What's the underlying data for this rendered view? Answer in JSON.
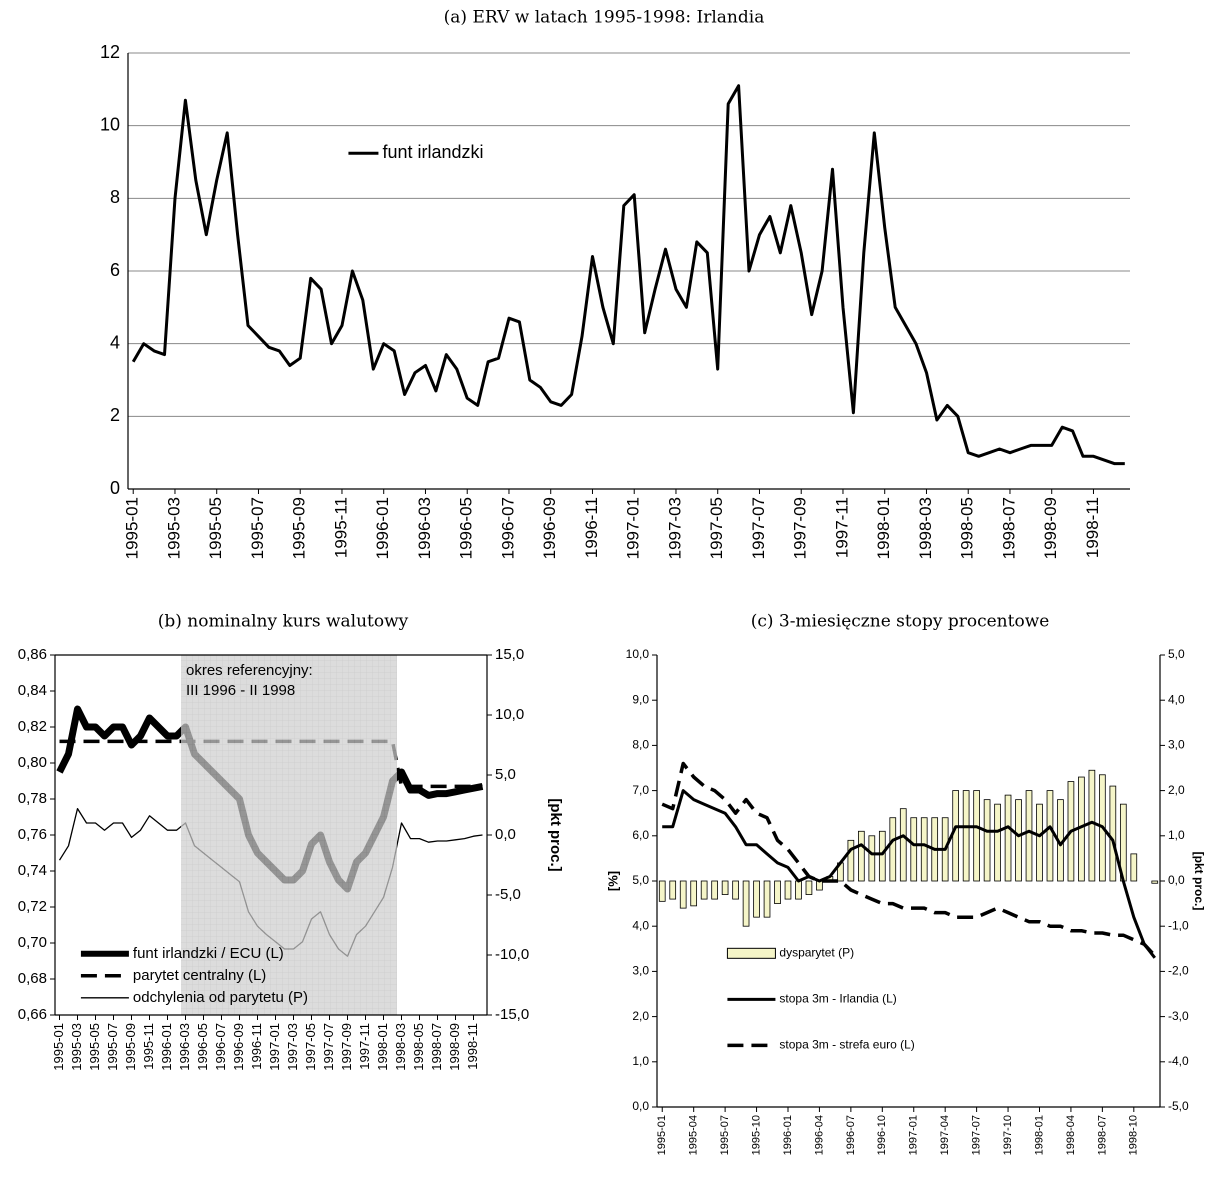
{
  "chart_data": [
    {
      "type": "line",
      "title": "(a) ERV w latach 1995-1998: Irlandia",
      "grid": true,
      "legend": "top",
      "categories": [
        "1995-01",
        null,
        null,
        null,
        "1995-03",
        null,
        null,
        null,
        "1995-05",
        null,
        null,
        null,
        "1995-07",
        null,
        null,
        null,
        "1995-09",
        null,
        null,
        null,
        "1995-11",
        null,
        null,
        null,
        "1996-01",
        null,
        null,
        null,
        "1996-03",
        null,
        null,
        null,
        "1996-05",
        null,
        null,
        null,
        "1996-07",
        null,
        null,
        null,
        "1996-09",
        null,
        null,
        null,
        "1996-11",
        null,
        null,
        null,
        "1997-01",
        null,
        null,
        null,
        "1997-03",
        null,
        null,
        null,
        "1997-05",
        null,
        null,
        null,
        "1997-07",
        null,
        null,
        null,
        "1997-09",
        null,
        null,
        null,
        "1997-11",
        null,
        null,
        null,
        "1998-01",
        null,
        null,
        null,
        "1998-03",
        null,
        null,
        null,
        "1998-05",
        null,
        null,
        null,
        "1998-07",
        null,
        null,
        null,
        "1998-09",
        null,
        null,
        null,
        "1998-11",
        null,
        null,
        null
      ],
      "ylim": [
        0,
        12
      ],
      "yticks": [
        0,
        2,
        4,
        6,
        8,
        10,
        12
      ],
      "series": [
        {
          "name": "funt irlandzki",
          "color": "#000000",
          "style": "solid",
          "values": [
            3.5,
            4.0,
            3.8,
            3.7,
            8.0,
            10.7,
            8.5,
            7.0,
            8.5,
            9.8,
            7.0,
            4.5,
            4.2,
            3.9,
            3.8,
            3.4,
            3.6,
            5.8,
            5.5,
            4.0,
            4.5,
            6.0,
            5.2,
            3.3,
            4.0,
            3.8,
            2.6,
            3.2,
            3.4,
            2.7,
            3.7,
            3.3,
            2.5,
            2.3,
            3.5,
            3.6,
            4.7,
            4.6,
            3.0,
            2.8,
            2.4,
            2.3,
            2.6,
            4.2,
            6.4,
            5.0,
            4.0,
            7.8,
            8.1,
            4.3,
            5.5,
            6.6,
            5.5,
            5.0,
            6.8,
            6.5,
            3.3,
            10.6,
            11.1,
            6.0,
            7.0,
            7.5,
            6.5,
            7.8,
            6.5,
            4.8,
            6.0,
            8.8,
            5.0,
            2.1,
            6.5,
            9.8,
            7.2,
            5.0,
            4.5,
            4.0,
            3.2,
            1.9,
            2.3,
            2.0,
            1.0,
            0.9,
            1.0,
            1.1,
            1.0,
            1.1,
            1.2,
            1.2,
            1.2,
            1.7,
            1.6,
            0.9,
            0.9,
            0.8,
            0.7,
            0.7
          ]
        }
      ]
    },
    {
      "type": "line",
      "title": "(b) nominalny kurs walutowy",
      "grid": false,
      "legend": "bottom-left",
      "y2_label": "[pkt proc.]",
      "annotations": [
        "okres referencyjny:",
        "III 1996 - II 1998"
      ],
      "shade": [
        "1996-03",
        "1998-03"
      ],
      "categories": [
        "1995-01",
        null,
        "1995-03",
        null,
        "1995-05",
        null,
        "1995-07",
        null,
        "1995-09",
        null,
        "1995-11",
        null,
        "1996-01",
        null,
        "1996-03",
        null,
        "1996-05",
        null,
        "1996-07",
        null,
        "1996-09",
        null,
        "1996-11",
        null,
        "1997-01",
        null,
        "1997-03",
        null,
        "1997-05",
        null,
        "1997-07",
        null,
        "1997-09",
        null,
        "1997-11",
        null,
        "1998-01",
        null,
        "1998-03",
        null,
        "1998-05",
        null,
        "1998-07",
        null,
        "1998-09",
        null,
        "1998-11",
        null
      ],
      "ylim": [
        0.66,
        0.86
      ],
      "yticks": [
        {
          "value": 0.66,
          "label": "0,66"
        },
        {
          "value": 0.68,
          "label": "0,68"
        },
        {
          "value": 0.7,
          "label": "0,70"
        },
        {
          "value": 0.72,
          "label": "0,72"
        },
        {
          "value": 0.74,
          "label": "0,74"
        },
        {
          "value": 0.76,
          "label": "0,76"
        },
        {
          "value": 0.78,
          "label": "0,78"
        },
        {
          "value": 0.8,
          "label": "0,80"
        },
        {
          "value": 0.82,
          "label": "0,82"
        },
        {
          "value": 0.84,
          "label": "0,84"
        },
        {
          "value": 0.86,
          "label": "0,86"
        }
      ],
      "y2lim": [
        -15,
        15
      ],
      "y2ticks": [
        {
          "value": -15,
          "label": "-15,0"
        },
        {
          "value": -10,
          "label": "-10,0"
        },
        {
          "value": -5,
          "label": "-5,0"
        },
        {
          "value": 0,
          "label": "0,0"
        },
        {
          "value": 5,
          "label": "5,0"
        },
        {
          "value": 10,
          "label": "10,0"
        },
        {
          "value": 15,
          "label": "15,0"
        }
      ],
      "series": [
        {
          "name": "funt irlandzki / ECU (L)",
          "color": "#000000",
          "style": "thick",
          "values": [
            0.795,
            0.805,
            0.83,
            0.82,
            0.82,
            0.815,
            0.82,
            0.82,
            0.81,
            0.815,
            0.825,
            0.82,
            0.815,
            0.815,
            0.82,
            0.805,
            0.8,
            0.795,
            0.79,
            0.785,
            0.78,
            0.76,
            0.75,
            0.745,
            0.74,
            0.735,
            0.735,
            0.74,
            0.755,
            0.76,
            0.745,
            0.735,
            0.73,
            0.745,
            0.75,
            0.76,
            0.77,
            0.79,
            0.795,
            0.785,
            0.785,
            0.782,
            0.783,
            0.783,
            0.784,
            0.785,
            0.786,
            0.787
          ]
        },
        {
          "name": "parytet centralny (L)",
          "color": "#000000",
          "style": "dashed",
          "values": [
            0.812,
            0.812,
            0.812,
            0.812,
            0.812,
            0.812,
            0.812,
            0.812,
            0.812,
            0.812,
            0.812,
            0.812,
            0.812,
            0.812,
            0.812,
            0.812,
            0.812,
            0.812,
            0.812,
            0.812,
            0.812,
            0.812,
            0.812,
            0.812,
            0.812,
            0.812,
            0.812,
            0.812,
            0.812,
            0.812,
            0.812,
            0.812,
            0.812,
            0.812,
            0.812,
            0.812,
            0.812,
            0.812,
            0.787,
            0.787,
            0.787,
            0.787,
            0.787,
            0.787,
            0.787,
            0.787,
            0.787,
            0.787
          ]
        },
        {
          "name": "odchylenia od parytetu (P)",
          "color": "#000000",
          "style": "thin",
          "axis": "y2",
          "values": [
            -2.1,
            -0.9,
            2.2,
            1.0,
            1.0,
            0.4,
            1.0,
            1.0,
            -0.2,
            0.4,
            1.6,
            1.0,
            0.4,
            0.4,
            1.0,
            -0.9,
            -1.5,
            -2.1,
            -2.7,
            -3.3,
            -3.9,
            -6.4,
            -7.6,
            -8.3,
            -8.9,
            -9.5,
            -9.5,
            -8.9,
            -7.0,
            -6.4,
            -8.3,
            -9.5,
            -10.1,
            -8.3,
            -7.6,
            -6.4,
            -5.2,
            -2.7,
            1.0,
            -0.3,
            -0.3,
            -0.6,
            -0.5,
            -0.5,
            -0.4,
            -0.3,
            -0.1,
            0.0
          ]
        }
      ]
    },
    {
      "type": "combo",
      "title": "(c) 3-miesięczne stopy procentowe",
      "grid": false,
      "legend": "bottom-left",
      "y_label": "[%]",
      "y2_label": "[pkt proc.]",
      "categories": [
        "1995-01",
        null,
        null,
        "1995-04",
        null,
        null,
        "1995-07",
        null,
        null,
        "1995-10",
        null,
        null,
        "1996-01",
        null,
        null,
        "1996-04",
        null,
        null,
        "1996-07",
        null,
        null,
        "1996-10",
        null,
        null,
        "1997-01",
        null,
        null,
        "1997-04",
        null,
        null,
        "1997-07",
        null,
        null,
        "1997-10",
        null,
        null,
        "1998-01",
        null,
        null,
        "1998-04",
        null,
        null,
        "1998-07",
        null,
        null,
        "1998-10",
        null,
        null
      ],
      "ylim": [
        0,
        10
      ],
      "yticks": [
        {
          "value": 0,
          "label": "0,0"
        },
        {
          "value": 1,
          "label": "1,0"
        },
        {
          "value": 2,
          "label": "2,0"
        },
        {
          "value": 3,
          "label": "3,0"
        },
        {
          "value": 4,
          "label": "4,0"
        },
        {
          "value": 5,
          "label": "5,0"
        },
        {
          "value": 6,
          "label": "6,0"
        },
        {
          "value": 7,
          "label": "7,0"
        },
        {
          "value": 8,
          "label": "8,0"
        },
        {
          "value": 9,
          "label": "9,0"
        },
        {
          "value": 10,
          "label": "10,0"
        }
      ],
      "y2lim": [
        -5,
        5
      ],
      "y2ticks": [
        {
          "value": -5,
          "label": "-5,0"
        },
        {
          "value": -4,
          "label": "-4,0"
        },
        {
          "value": -3,
          "label": "-3,0"
        },
        {
          "value": -2,
          "label": "-2,0"
        },
        {
          "value": -1,
          "label": "-1,0"
        },
        {
          "value": 0,
          "label": "0,0"
        },
        {
          "value": 1,
          "label": "1,0"
        },
        {
          "value": 2,
          "label": "2,0"
        },
        {
          "value": 3,
          "label": "3,0"
        },
        {
          "value": 4,
          "label": "4,0"
        },
        {
          "value": 5,
          "label": "5,0"
        }
      ],
      "series": [
        {
          "name": "dysparytet (P)",
          "color": "#f5f5c8",
          "type": "bar",
          "axis": "y2",
          "values": [
            -0.45,
            -0.4,
            -0.6,
            -0.55,
            -0.4,
            -0.4,
            -0.3,
            -0.4,
            -1.0,
            -0.8,
            -0.8,
            -0.5,
            -0.4,
            -0.4,
            -0.3,
            -0.2,
            0.1,
            0.4,
            0.9,
            1.1,
            1.0,
            1.1,
            1.4,
            1.6,
            1.4,
            1.4,
            1.4,
            1.4,
            2.0,
            2.0,
            2.0,
            1.8,
            1.7,
            1.9,
            1.8,
            2.0,
            1.7,
            2.0,
            1.8,
            2.2,
            2.3,
            2.45,
            2.35,
            2.1,
            1.7,
            0.6,
            0.0,
            -0.05
          ]
        },
        {
          "name": "stopa 3m - Irlandia (L)",
          "color": "#000000",
          "type": "line",
          "style": "solid",
          "values": [
            6.2,
            6.2,
            7.0,
            6.8,
            6.7,
            6.6,
            6.5,
            6.2,
            5.8,
            5.8,
            5.6,
            5.4,
            5.3,
            5.0,
            5.1,
            5.0,
            5.1,
            5.4,
            5.7,
            5.8,
            5.6,
            5.6,
            5.9,
            6.0,
            5.8,
            5.8,
            5.7,
            5.7,
            6.2,
            6.2,
            6.2,
            6.1,
            6.1,
            6.2,
            6.0,
            6.1,
            6.0,
            6.2,
            5.8,
            6.1,
            6.2,
            6.3,
            6.2,
            5.9,
            5.0,
            4.2,
            3.6,
            3.3
          ]
        },
        {
          "name": "stopa 3m - strefa euro (L)",
          "color": "#000000",
          "type": "line",
          "style": "dashed",
          "values": [
            6.7,
            6.6,
            7.6,
            7.3,
            7.1,
            7.0,
            6.8,
            6.5,
            6.8,
            6.5,
            6.4,
            5.9,
            5.7,
            5.4,
            5.1,
            5.0,
            5.0,
            5.0,
            4.8,
            4.7,
            4.6,
            4.5,
            4.5,
            4.4,
            4.4,
            4.4,
            4.3,
            4.3,
            4.2,
            4.2,
            4.2,
            4.3,
            4.4,
            4.3,
            4.2,
            4.1,
            4.1,
            4.0,
            4.0,
            3.9,
            3.9,
            3.85,
            3.85,
            3.8,
            3.8,
            3.7,
            3.6,
            3.35
          ]
        }
      ]
    }
  ]
}
